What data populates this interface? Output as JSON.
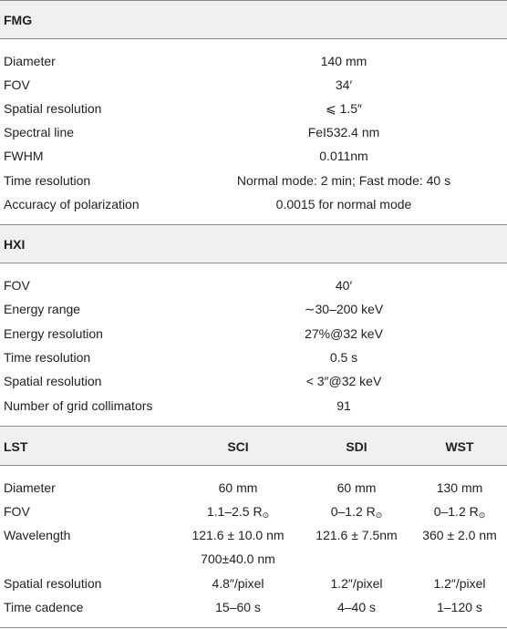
{
  "fmg": {
    "header": "FMG",
    "rows": [
      {
        "label": "Diameter",
        "value": "140 mm"
      },
      {
        "label": "FOV",
        "value": "34′"
      },
      {
        "label": "Spatial resolution",
        "value": "⩽ 1.5″"
      },
      {
        "label": "Spectral line",
        "value": "FeI532.4 nm"
      },
      {
        "label": "FWHM",
        "value": "0.011nm"
      },
      {
        "label": "Time resolution",
        "value": "Normal mode: 2 min; Fast mode: 40 s"
      },
      {
        "label": "Accuracy of polarization",
        "value": "0.0015 for normal mode"
      }
    ]
  },
  "hxi": {
    "header": "HXI",
    "rows": [
      {
        "label": "FOV",
        "value": "40′"
      },
      {
        "label": "Energy range",
        "value": "∼30–200 keV"
      },
      {
        "label": "Energy resolution",
        "value": "27%@32 keV"
      },
      {
        "label": "Time resolution",
        "value": "0.5 s"
      },
      {
        "label": "Spatial resolution",
        "value": "< 3″@32 keV"
      },
      {
        "label": "Number of grid collimators",
        "value": "91"
      }
    ]
  },
  "lst": {
    "header": "LST",
    "columns": [
      "SCI",
      "SDI",
      "WST"
    ],
    "sun_symbol": "⊙",
    "rows": [
      {
        "label": "Diameter",
        "sci": "60 mm",
        "sdi": "60 mm",
        "wst": "130 mm"
      },
      {
        "label": "FOV",
        "sci": "1.1–2.5 R",
        "sdi": "0–1.2 R",
        "wst": "0–1.2 R"
      },
      {
        "label": "Wavelength",
        "sci": "121.6 ± 10.0 nm",
        "sci_2": "700±40.0 nm",
        "sdi": "121.6 ± 7.5nm",
        "wst": "360 ± 2.0 nm"
      },
      {
        "label": "Spatial resolution",
        "sci": "4.8″/pixel",
        "sdi": "1.2″/pixel",
        "wst": "1.2″/pixel"
      },
      {
        "label": "Time cadence",
        "sci": "15–60 s",
        "sdi": "4–40 s",
        "wst": "1–120 s"
      }
    ]
  }
}
